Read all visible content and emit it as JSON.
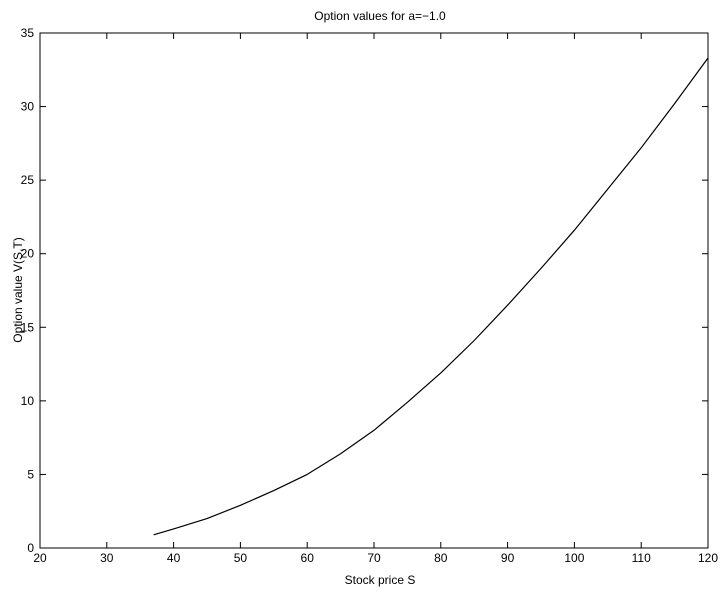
{
  "chart_data": {
    "type": "line",
    "title": "Option values for a=−1.0",
    "xlabel": "Stock price S",
    "ylabel": "Option value V(S,T)",
    "xlim": [
      20,
      120
    ],
    "ylim": [
      0,
      35
    ],
    "xticks": [
      20,
      30,
      40,
      50,
      60,
      70,
      80,
      90,
      100,
      110,
      120
    ],
    "yticks": [
      0,
      5,
      10,
      15,
      20,
      25,
      30,
      35
    ],
    "grid": false,
    "legend": "none",
    "colors": {
      "line": "#000000",
      "axes": "#000000",
      "background": "#ffffff"
    },
    "series": [
      {
        "x": [
          37,
          40,
          45,
          50,
          55,
          60,
          65,
          70,
          75,
          80,
          85,
          90,
          95,
          100,
          105,
          110,
          115,
          120
        ],
        "y": [
          0.9,
          1.3,
          2.0,
          2.9,
          3.9,
          5.0,
          6.4,
          8.0,
          9.9,
          11.9,
          14.1,
          16.5,
          19.0,
          21.6,
          24.4,
          27.2,
          30.2,
          33.3
        ]
      }
    ]
  }
}
